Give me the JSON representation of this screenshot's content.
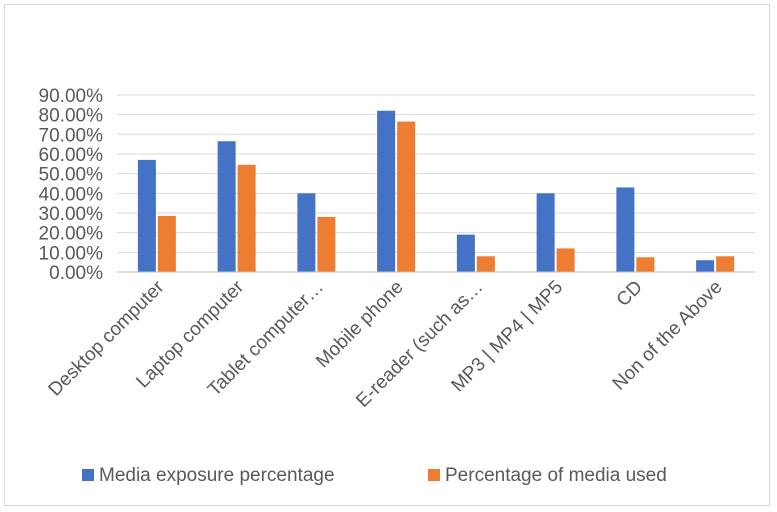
{
  "chart_data": {
    "type": "bar",
    "title": "",
    "xlabel": "",
    "ylabel": "",
    "ylim": [
      0,
      0.9
    ],
    "yticks": [
      "0.00%",
      "10.00%",
      "20.00%",
      "30.00%",
      "40.00%",
      "50.00%",
      "60.00%",
      "70.00%",
      "80.00%",
      "90.00%"
    ],
    "grid": true,
    "legend": "bottom",
    "categories": [
      "Desktop computer",
      "Laptop computer",
      "Tablet computer…",
      "Mobile phone",
      "E-reader (such as…",
      "MP3 | MP4 | MP5",
      "CD",
      "Non of the Above"
    ],
    "series": [
      {
        "name": "Media exposure percentage",
        "color": "#4472c4",
        "values": [
          0.57,
          0.665,
          0.4,
          0.82,
          0.19,
          0.4,
          0.43,
          0.06
        ]
      },
      {
        "name": "Percentage of media used",
        "color": "#ed7d31",
        "values": [
          0.285,
          0.545,
          0.28,
          0.765,
          0.08,
          0.12,
          0.075,
          0.08
        ]
      }
    ]
  }
}
